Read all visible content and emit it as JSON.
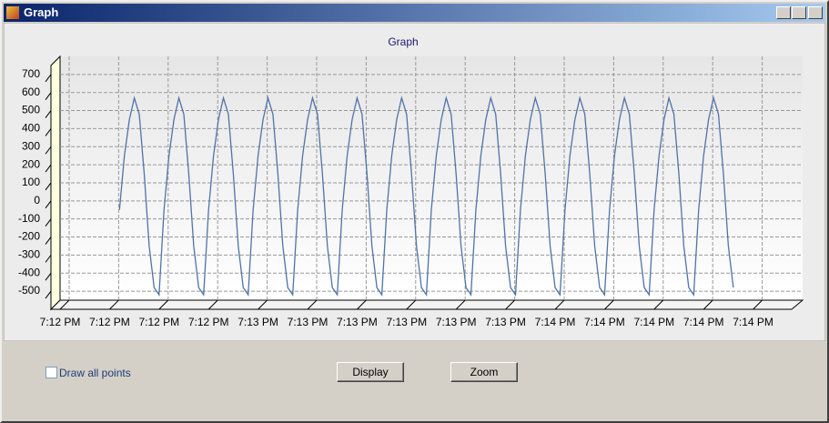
{
  "window": {
    "title": "Graph"
  },
  "controls": {
    "checkbox": "Draw all points",
    "buttons": [
      "Display",
      "Zoom"
    ]
  },
  "chart_data": {
    "type": "line",
    "title": "Graph",
    "x": [
      12,
      13,
      14,
      15,
      16,
      17,
      18,
      19,
      20,
      21,
      22,
      23,
      24,
      25,
      26,
      27,
      28,
      29,
      30,
      31,
      32,
      33,
      34,
      35,
      36,
      37,
      38,
      39,
      40,
      41,
      42,
      43,
      44,
      45,
      46,
      47,
      48,
      49,
      50,
      51,
      52,
      53,
      54,
      55,
      56,
      57,
      58,
      59,
      60,
      61,
      62,
      63,
      64,
      65,
      66,
      67,
      68,
      69,
      70,
      71,
      72,
      73,
      74,
      75,
      76,
      77,
      78,
      79,
      80,
      81,
      82,
      83,
      84,
      85,
      86,
      87,
      88,
      89,
      90,
      91,
      92,
      93,
      94,
      95,
      96,
      97,
      98,
      99,
      100,
      101,
      102,
      103,
      104,
      105,
      106,
      107,
      108,
      109,
      110,
      111,
      112,
      113,
      114,
      115,
      116,
      117,
      118,
      119,
      120,
      121,
      122,
      123,
      124,
      125,
      126,
      127,
      128,
      129,
      130,
      131,
      132,
      133,
      134,
      135,
      136
    ],
    "series": [
      {
        "color": "#4f73a8",
        "values": [
          -50,
          250,
          450,
          570,
          480,
          150,
          -250,
          -480,
          -520,
          -50,
          250,
          450,
          570,
          480,
          150,
          -250,
          -480,
          -520,
          -50,
          250,
          450,
          570,
          480,
          150,
          -250,
          -480,
          -520,
          -50,
          250,
          450,
          570,
          480,
          150,
          -250,
          -480,
          -520,
          -50,
          250,
          450,
          570,
          480,
          150,
          -250,
          -480,
          -520,
          -50,
          250,
          450,
          570,
          480,
          150,
          -250,
          -480,
          -520,
          -50,
          250,
          450,
          570,
          480,
          150,
          -250,
          -480,
          -520,
          -50,
          250,
          450,
          570,
          480,
          150,
          -250,
          -480,
          -520,
          -50,
          250,
          450,
          570,
          480,
          150,
          -250,
          -480,
          -520,
          -50,
          250,
          450,
          570,
          480,
          150,
          -250,
          -480,
          -520,
          -50,
          250,
          450,
          570,
          480,
          150,
          -250,
          -480,
          -520,
          -50,
          250,
          450,
          570,
          480,
          150,
          -250,
          -480,
          -520,
          -50,
          250,
          450,
          570,
          480,
          150,
          -250,
          -480,
          -520,
          -50,
          250,
          450,
          570,
          480,
          150,
          -250,
          -480
        ]
      }
    ],
    "xlim": [
      0,
      150
    ],
    "xticks": [
      {
        "value": 0,
        "label": "7:12 PM"
      },
      {
        "value": 10,
        "label": "7:12 PM"
      },
      {
        "value": 20,
        "label": "7:12 PM"
      },
      {
        "value": 30,
        "label": "7:12 PM"
      },
      {
        "value": 40,
        "label": "7:13 PM"
      },
      {
        "value": 50,
        "label": "7:13 PM"
      },
      {
        "value": 60,
        "label": "7:13 PM"
      },
      {
        "value": 70,
        "label": "7:13 PM"
      },
      {
        "value": 80,
        "label": "7:13 PM"
      },
      {
        "value": 90,
        "label": "7:13 PM"
      },
      {
        "value": 100,
        "label": "7:14 PM"
      },
      {
        "value": 110,
        "label": "7:14 PM"
      },
      {
        "value": 120,
        "label": "7:14 PM"
      },
      {
        "value": 130,
        "label": "7:14 PM"
      },
      {
        "value": 140,
        "label": "7:14 PM"
      }
    ],
    "ylim": [
      -550,
      800
    ],
    "yticks": [
      -500,
      -400,
      -300,
      -200,
      -100,
      0,
      100,
      200,
      300,
      400,
      500,
      600,
      700
    ],
    "grid": true
  }
}
